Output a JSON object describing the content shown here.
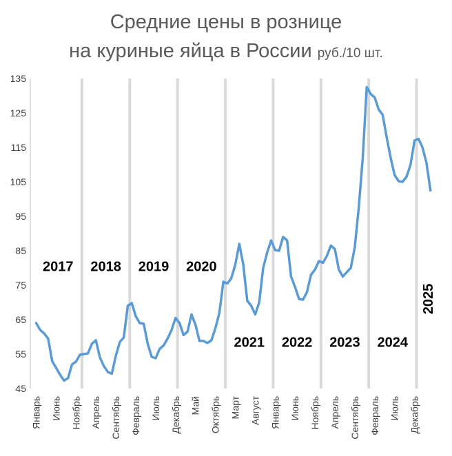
{
  "title_line1": "Средние цены в рознице",
  "title_line2": "на куриные яйца в России",
  "unit": "руб./10 шт.",
  "colors": {
    "line": "#5b9bd5",
    "year_separator": "#d9d9d9",
    "grid": "#d9d9d9",
    "text": "#404040"
  },
  "chart_data": {
    "type": "line",
    "title": "Средние цены в рознице на куриные яйца в России",
    "ylabel": "руб./10 шт.",
    "ylim": [
      45,
      135
    ],
    "yticks": [
      45,
      55,
      65,
      75,
      85,
      95,
      105,
      115,
      125,
      135
    ],
    "x_tick_labels": [
      {
        "label": "Январь",
        "month_index": 0
      },
      {
        "label": "Июнь",
        "month_index": 5
      },
      {
        "label": "Ноябрь",
        "month_index": 10
      },
      {
        "label": "Апрель",
        "month_index": 15
      },
      {
        "label": "Сентябрь",
        "month_index": 20
      },
      {
        "label": "Февраль",
        "month_index": 25
      },
      {
        "label": "Июль",
        "month_index": 30
      },
      {
        "label": "Декабрь",
        "month_index": 35
      },
      {
        "label": "Май",
        "month_index": 40
      },
      {
        "label": "Октябрь",
        "month_index": 45
      },
      {
        "label": "Март",
        "month_index": 50
      },
      {
        "label": "Август",
        "month_index": 55
      },
      {
        "label": "Январь",
        "month_index": 60
      },
      {
        "label": "Июнь",
        "month_index": 65
      },
      {
        "label": "Ноябрь",
        "month_index": 70
      },
      {
        "label": "Апрель",
        "month_index": 75
      },
      {
        "label": "Сентябрь",
        "month_index": 80
      },
      {
        "label": "Февраль",
        "month_index": 85
      },
      {
        "label": "Июль",
        "month_index": 90
      },
      {
        "label": "Декабрь",
        "month_index": 95
      }
    ],
    "year_labels": [
      {
        "label": "2017",
        "year_index": 0,
        "y_value": 80.5
      },
      {
        "label": "2018",
        "year_index": 1,
        "y_value": 80.5
      },
      {
        "label": "2019",
        "year_index": 2,
        "y_value": 80.5
      },
      {
        "label": "2020",
        "year_index": 3,
        "y_value": 80.5
      },
      {
        "label": "2021",
        "year_index": 4,
        "y_value": 58.5
      },
      {
        "label": "2022",
        "year_index": 5,
        "y_value": 58.5
      },
      {
        "label": "2023",
        "year_index": 6,
        "y_value": 58.5
      },
      {
        "label": "2024",
        "year_index": 7,
        "y_value": 58.5
      },
      {
        "label": "2025",
        "year_index": 8,
        "y_value": 71,
        "vertical": true
      }
    ],
    "grid": false,
    "series": [
      {
        "values": [
          64,
          62,
          61,
          59.5,
          53,
          51,
          49,
          47.3,
          48,
          52,
          52.8,
          54.8,
          55,
          55.2,
          58,
          59,
          54,
          51.5,
          49.8,
          49.3,
          54.5,
          58.5,
          59.8,
          69,
          69.8,
          66,
          64,
          63.8,
          58,
          54.2,
          53.8,
          56.5,
          57.5,
          59.5,
          62,
          65.5,
          64,
          60.5,
          61.5,
          66.5,
          63.5,
          58.8,
          58.8,
          58.2,
          59,
          62.5,
          67,
          76,
          75.5,
          77,
          81,
          87,
          81,
          70.5,
          69,
          66.5,
          70,
          80,
          84.5,
          88,
          85.2,
          85,
          89,
          88,
          77.5,
          74.5,
          71,
          70.8,
          73,
          78,
          79.5,
          82,
          81.5,
          83.5,
          86.5,
          85.5,
          79.5,
          77.5,
          78.8,
          80,
          86,
          97.5,
          112,
          132.5,
          130.5,
          129.5,
          126,
          124.5,
          118,
          112,
          107,
          105.2,
          105,
          106.5,
          110,
          117,
          117.5,
          115,
          110.5,
          102.5
        ]
      }
    ]
  }
}
